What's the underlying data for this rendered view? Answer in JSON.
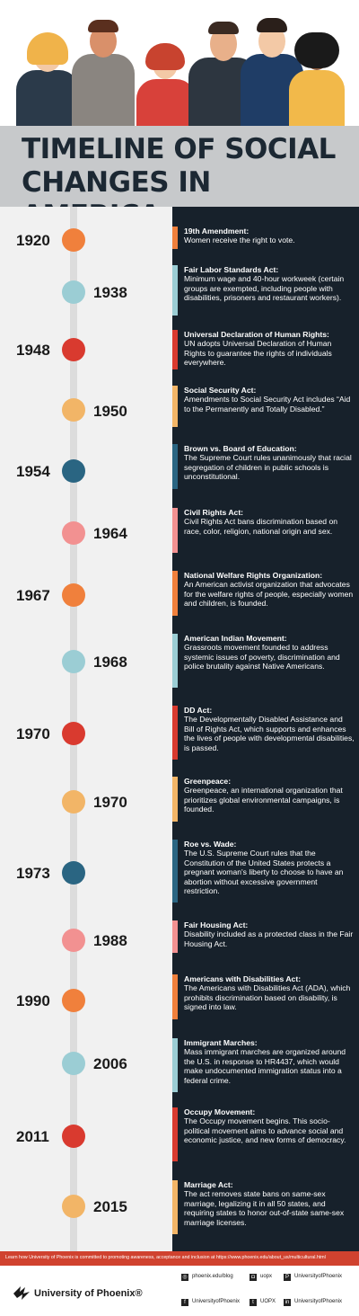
{
  "title": "TIMELINE OF SOCIAL CHANGES IN AMERICA",
  "colors": {
    "orange": "#f0803c",
    "teal": "#9bcdd4",
    "red": "#d93a2f",
    "yellow": "#f2b567",
    "navy": "#2a6582",
    "pink": "#f29191",
    "dark_panel": "#17212b",
    "footer_red": "#d0422f"
  },
  "events": [
    {
      "year": "1920",
      "title": "19th Amendment:",
      "body": "Women receive the right to vote."
    },
    {
      "year": "1938",
      "title": "Fair Labor Standards Act:",
      "body": "Minimum wage and 40-hour workweek (certain groups are exempted, including people with disabilities, prisoners and restaurant workers)."
    },
    {
      "year": "1948",
      "title": "Universal Declaration of Human Rights:",
      "body": "UN adopts Universal Declaration of Human Rights to guarantee the rights of individuals everywhere."
    },
    {
      "year": "1950",
      "title": "Social Security Act:",
      "body": "Amendments to Social Security Act includes “Aid to the Permanently and Totally Disabled.”"
    },
    {
      "year": "1954",
      "title": "Brown vs. Board of Education:",
      "body": "The Supreme Court rules unanimously that racial segregation of children in public schools is unconstitutional."
    },
    {
      "year": "1964",
      "title": "Civil Rights Act:",
      "body": "Civil Rights Act bans discrimination based on race, color, religion, national origin and sex."
    },
    {
      "year": "1967",
      "title": "National Welfare Rights Organization:",
      "body": "An American activist organization that advocates for the welfare rights of people, especially women and children, is founded."
    },
    {
      "year": "1968",
      "title": "American Indian Movement:",
      "body": "Grassroots movement founded to address systemic issues of poverty, discrimination and police brutality against Native Americans."
    },
    {
      "year": "1970",
      "title": "DD Act:",
      "body": "The Developmentally Disabled Assistance and Bill of Rights Act, which supports and enhances the lives of people with developmental disabilities, is passed."
    },
    {
      "year": "1970",
      "title": "Greenpeace:",
      "body": "Greenpeace, an international organization that prioritizes global environmental campaigns, is founded."
    },
    {
      "year": "1973",
      "title": "Roe vs. Wade:",
      "body": "The U.S. Supreme Court rules that the Constitution of the United States protects a pregnant woman's liberty to choose to have an abortion without excessive government restriction."
    },
    {
      "year": "1988",
      "title": "Fair Housing Act:",
      "body": "Disability included as a protected class in the Fair Housing Act."
    },
    {
      "year": "1990",
      "title": "Americans with Disabilities Act:",
      "body": "The Americans with Disabilities Act (ADA), which prohibits discrimination based on disability, is signed into law."
    },
    {
      "year": "2006",
      "title": "Immigrant Marches:",
      "body": "Mass immigrant marches are organized around the U.S. in response to HR4437, which would make undocumented immigration status into a federal crime."
    },
    {
      "year": "2011",
      "title": "Occupy Movement:",
      "body": "The Occupy movement begins. This socio-political movement aims to advance social and economic justice, and new forms of democracy."
    },
    {
      "year": "2015",
      "title": "Marriage Act:",
      "body": "The act removes state bans on same-sex marriage, legalizing it in all 50 states, and requiring states to honor out-of-state same-sex marriage licenses."
    }
  ],
  "footer": {
    "note": "Learn how University of Phoenix is committed to promoting awareness, acceptance and inclusion at https://www.phoenix.edu/about_us/multicultural.html",
    "brand": "University of Phoenix®",
    "social": [
      "phoenix.edu/blog",
      "uopx",
      "UniversityofPhoenix",
      "UniversityofPhoenix",
      "UOPX",
      "UniversityofPhoenix"
    ]
  }
}
